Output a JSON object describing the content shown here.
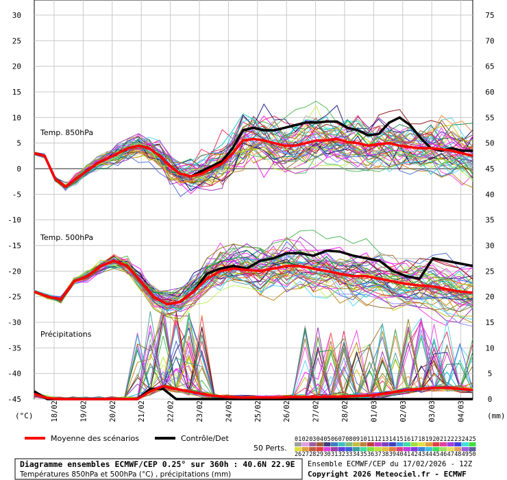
{
  "chart_data": {
    "type": "line",
    "left_axis": {
      "unit": "(°C)",
      "ticks": [
        "30",
        "25",
        "20",
        "15",
        "10",
        "5",
        "0",
        "-5",
        "-10",
        "-15",
        "-20",
        "-25",
        "-30",
        "-35",
        "-40",
        "-45"
      ],
      "range": [
        -45,
        30
      ]
    },
    "right_axis": {
      "unit": "(mm)",
      "ticks": [
        "75",
        "70",
        "65",
        "60",
        "55",
        "50",
        "45",
        "40",
        "35",
        "30",
        "25",
        "20",
        "15",
        "10",
        "5",
        "0"
      ],
      "range": [
        0,
        75
      ]
    },
    "x_labels": [
      "18/02",
      "19/02",
      "20/02",
      "21/02",
      "22/02",
      "23/02",
      "24/02",
      "25/02",
      "26/02",
      "27/02",
      "28/02",
      "01/03",
      "02/03",
      "03/03",
      "04/03"
    ],
    "panel_labels": {
      "t850": "Temp. 850hPa",
      "t500": "Temp. 500hPa",
      "precip": "Précipitations"
    },
    "series": [
      {
        "name": "Moyenne des scénarios",
        "color": "#ff0000",
        "t850": [
          3,
          2.5,
          -2,
          -3.5,
          -2,
          -0.5,
          1,
          2,
          3,
          4,
          4.5,
          4,
          2.5,
          0.5,
          -1,
          -1.5,
          -1,
          0,
          1,
          3,
          5.5,
          5.8,
          5.5,
          5,
          4.5,
          4.5,
          5,
          5.5,
          5.5,
          5.8,
          5.2,
          5,
          4.5,
          4.8,
          5,
          4.5,
          4.2,
          4,
          4,
          3.8,
          3.5,
          3,
          2.5
        ],
        "t500": [
          -24,
          -25,
          -25.5,
          -22,
          -21,
          -19,
          -18,
          -19,
          -22,
          -25,
          -26.5,
          -26,
          -24,
          -21.5,
          -20,
          -19.5,
          -19.8,
          -20,
          -19.5,
          -19,
          -19,
          -19.5,
          -20,
          -20.5,
          -21,
          -21,
          -21.5,
          -22,
          -22.5,
          -22.8,
          -23,
          -23.5,
          -24,
          -24.2
        ],
        "precip": [
          1,
          0.2,
          0,
          0,
          0,
          0,
          0,
          0,
          0,
          1.5,
          2.5,
          2,
          1.5,
          1,
          0.6,
          0.4,
          0.3,
          0.3,
          0.3,
          0.3,
          0.4,
          0.4,
          0.4,
          0.5,
          0.5,
          0.6,
          0.7,
          1,
          1.4,
          1.8,
          2,
          2.2,
          2.2,
          2,
          1.8
        ]
      },
      {
        "name": "Contrôle/Det",
        "color": "#000000",
        "t850": [
          3,
          2.5,
          -2,
          -3.5,
          -2,
          -0.5,
          1,
          2,
          3,
          4,
          4.5,
          4,
          2.5,
          0.5,
          -1,
          -1.5,
          -0.5,
          0.5,
          1.5,
          4,
          7.5,
          8,
          7.5,
          7.5,
          8,
          8.5,
          9,
          9,
          9.2,
          9.2,
          8,
          7.5,
          6.5,
          6.8,
          9,
          10,
          8.5,
          6,
          4,
          3.5,
          4,
          3.5,
          3.5
        ],
        "t500": [
          -24,
          -25,
          -25.5,
          -22,
          -21,
          -19,
          -18,
          -19,
          -22,
          -25,
          -26.5,
          -26,
          -24,
          -20.5,
          -19.5,
          -19,
          -19.5,
          -18,
          -17.5,
          -16.5,
          -16.5,
          -17,
          -16,
          -16.2,
          -17,
          -17.5,
          -18,
          -20,
          -21,
          -21.5,
          -17.5,
          -18,
          -18.5,
          -19
        ],
        "precip": [
          1.5,
          0,
          0,
          0,
          0,
          0,
          0,
          0,
          0,
          2,
          2,
          0,
          0,
          0,
          0,
          0,
          0,
          0,
          0,
          0,
          0,
          0,
          0,
          0,
          0,
          0,
          0,
          0,
          0,
          0,
          0,
          0,
          0,
          0,
          0
        ]
      }
    ],
    "ensemble_count": 50,
    "member_colors": [
      "#e6194b",
      "#3cb44b",
      "#4363d8",
      "#f58231",
      "#911eb4",
      "#42d4f4",
      "#f032e6",
      "#bfef45",
      "#469990",
      "#9a6324",
      "#800000",
      "#808000",
      "#000075",
      "#a9a9a9",
      "#ff00ff",
      "#00c0c0",
      "#7f7fff",
      "#c08000",
      "#008040",
      "#c0c000"
    ]
  },
  "legend": {
    "mean_label": "Moyenne des scénarios",
    "control_label": "Contrôle/Det",
    "perts_label": "50 Perts.",
    "perts_row1": [
      "01",
      "02",
      "03",
      "04",
      "05",
      "06",
      "07",
      "08",
      "09",
      "10",
      "11",
      "12",
      "13",
      "14",
      "15",
      "16",
      "17",
      "18",
      "19",
      "20",
      "21",
      "22",
      "23",
      "24",
      "25"
    ],
    "perts_row2": [
      "26",
      "27",
      "28",
      "29",
      "30",
      "31",
      "32",
      "33",
      "34",
      "35",
      "36",
      "37",
      "38",
      "39",
      "40",
      "41",
      "42",
      "43",
      "44",
      "45",
      "46",
      "47",
      "48",
      "49",
      "50"
    ],
    "swatch_colors_row1": [
      "#a0a0a0",
      "#e0a0e0",
      "#a060a0",
      "#a06040",
      "#404080",
      "#4080c0",
      "#40c0c0",
      "#80c080",
      "#c0c040",
      "#c08040",
      "#c04040",
      "#c040c0",
      "#8040c0",
      "#4040c0",
      "#40a0e0",
      "#40e0a0",
      "#a0e040",
      "#e0e040",
      "#e0a040",
      "#e04040",
      "#e040a0",
      "#a040e0",
      "#4040e0",
      "#40e0e0",
      "#40e040"
    ],
    "swatch_colors_row2": [
      "#e0e040",
      "#e0a040",
      "#c06040",
      "#e04040",
      "#e040e0",
      "#a040a0",
      "#6040e0",
      "#4060e0",
      "#40a0a0",
      "#40e0a0",
      "#80e040",
      "#c0e040",
      "#e0c040",
      "#e08040",
      "#e04080",
      "#c040e0",
      "#8040e0",
      "#4080e0",
      "#40c0e0",
      "#40e060",
      "#a0e060",
      "#e0e060",
      "#e0a060",
      "#a060e0",
      "#6060a0"
    ]
  },
  "footer": {
    "title": "Diagramme ensembles ECMWF/CEP 0.25° sur 360h : 40.6N 22.9E",
    "subtitle": "Températures 850hPa et 500hPa (°C) , précipitations (mm)",
    "run": "Ensemble ECMWF/CEP du 17/02/2026 - 12Z",
    "copyright": "Copyright 2026 Meteociel.fr - ECMWF"
  }
}
